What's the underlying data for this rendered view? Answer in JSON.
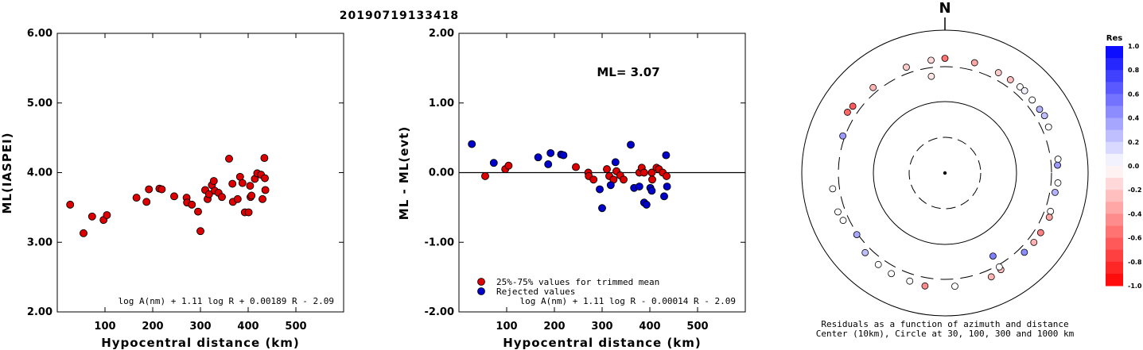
{
  "page_title": "20190719133418",
  "chart_data": [
    {
      "type": "scatter",
      "id": "ml-vs-distance",
      "xlabel": "Hypocentral distance (km)",
      "ylabel": "ML(IASPEI)",
      "xlim": [
        0,
        600
      ],
      "ylim": [
        2.0,
        6.0
      ],
      "xticks": [
        "100",
        "200",
        "300",
        "400",
        "500"
      ],
      "xtick_values": [
        100,
        200,
        300,
        400,
        500
      ],
      "yticks": [
        "2.00",
        "3.00",
        "4.00",
        "5.00",
        "6.00"
      ],
      "ytick_values": [
        2,
        3,
        4,
        5,
        6
      ],
      "formula": "log A(nm) + 1.11 log R + 0.00189 R - 2.09",
      "series": [
        {
          "color": "#dd0000",
          "points": [
            [
              27,
              3.54
            ],
            [
              55,
              3.13
            ],
            [
              73,
              3.37
            ],
            [
              97,
              3.32
            ],
            [
              104,
              3.39
            ],
            [
              166,
              3.64
            ],
            [
              187,
              3.58
            ],
            [
              192,
              3.76
            ],
            [
              214,
              3.77
            ],
            [
              219,
              3.76
            ],
            [
              245,
              3.66
            ],
            [
              271,
              3.64
            ],
            [
              272,
              3.57
            ],
            [
              282,
              3.54
            ],
            [
              295,
              3.44
            ],
            [
              300,
              3.16
            ],
            [
              310,
              3.75
            ],
            [
              315,
              3.62
            ],
            [
              318,
              3.69
            ],
            [
              324,
              3.82
            ],
            [
              328,
              3.88
            ],
            [
              330,
              3.74
            ],
            [
              338,
              3.71
            ],
            [
              345,
              3.65
            ],
            [
              360,
              4.2
            ],
            [
              367,
              3.84
            ],
            [
              368,
              3.58
            ],
            [
              378,
              3.62
            ],
            [
              383,
              3.94
            ],
            [
              388,
              3.85
            ],
            [
              393,
              3.43
            ],
            [
              401,
              3.43
            ],
            [
              404,
              3.81
            ],
            [
              405,
              3.65
            ],
            [
              407,
              3.67
            ],
            [
              414,
              3.91
            ],
            [
              419,
              3.99
            ],
            [
              427,
              3.97
            ],
            [
              430,
              3.62
            ],
            [
              434,
              4.21
            ],
            [
              435,
              3.92
            ],
            [
              436,
              3.75
            ]
          ]
        }
      ]
    },
    {
      "type": "scatter",
      "id": "residual-vs-distance",
      "xlabel": "Hypocentral distance (km)",
      "ylabel": "ML - ML(evt)",
      "xlim": [
        0,
        600
      ],
      "ylim": [
        -2.0,
        2.0
      ],
      "xticks": [
        "100",
        "200",
        "300",
        "400",
        "500"
      ],
      "xtick_values": [
        100,
        200,
        300,
        400,
        500
      ],
      "yticks": [
        "-2.00",
        "-1.00",
        "0.00",
        "1.00",
        "2.00"
      ],
      "ytick_values": [
        -2,
        -1,
        0,
        1,
        2
      ],
      "annotation": "ML= 3.07",
      "formula": "log A(nm) + 1.11 log R - 0.00014 R - 2.09",
      "legend_position": "bottom-left",
      "series": [
        {
          "name": "25%-75% values for trimmed mean",
          "color": "#dd0000",
          "points": [
            [
              55,
              -0.05
            ],
            [
              97,
              0.05
            ],
            [
              104,
              0.1
            ],
            [
              245,
              0.08
            ],
            [
              271,
              0.0
            ],
            [
              272,
              -0.05
            ],
            [
              282,
              -0.1
            ],
            [
              310,
              0.05
            ],
            [
              315,
              -0.05
            ],
            [
              324,
              -0.1
            ],
            [
              330,
              0.02
            ],
            [
              338,
              -0.04
            ],
            [
              345,
              -0.1
            ],
            [
              378,
              0.0
            ],
            [
              383,
              0.07
            ],
            [
              388,
              0.0
            ],
            [
              404,
              0.0
            ],
            [
              405,
              -0.1
            ],
            [
              414,
              0.07
            ],
            [
              419,
              0.05
            ],
            [
              427,
              0.0
            ],
            [
              435,
              -0.05
            ]
          ]
        },
        {
          "name": "Rejected values",
          "color": "#0000cc",
          "points": [
            [
              27,
              0.41
            ],
            [
              73,
              0.14
            ],
            [
              166,
              0.22
            ],
            [
              187,
              0.12
            ],
            [
              192,
              0.28
            ],
            [
              214,
              0.26
            ],
            [
              219,
              0.25
            ],
            [
              295,
              -0.24
            ],
            [
              300,
              -0.51
            ],
            [
              318,
              -0.18
            ],
            [
              328,
              0.15
            ],
            [
              360,
              0.4
            ],
            [
              367,
              -0.22
            ],
            [
              378,
              -0.2
            ],
            [
              388,
              -0.43
            ],
            [
              393,
              -0.46
            ],
            [
              401,
              -0.22
            ],
            [
              404,
              -0.26
            ],
            [
              430,
              -0.34
            ],
            [
              434,
              0.25
            ],
            [
              436,
              -0.2
            ]
          ]
        }
      ]
    },
    {
      "type": "scatter",
      "id": "azimuth-residuals",
      "north_label": "N",
      "caption_line1": "Residuals as a function of azimuth and distance",
      "caption_line2": "Center (10km), Circle at 30, 100, 300 and 1000 km",
      "colorbar_title": "Res",
      "colorbar_ticks": [
        "1.0",
        "0.8",
        "0.6",
        "0.4",
        "0.2",
        "0.0",
        "-0.2",
        "-0.4",
        "-0.6",
        "-0.8",
        "-1.0"
      ],
      "colorbar_tick_values": [
        1.0,
        0.8,
        0.6,
        0.4,
        0.2,
        0.0,
        -0.2,
        -0.4,
        -0.6,
        -0.8,
        -1.0
      ],
      "color_high": "#0000ff",
      "color_low": "#ff0000",
      "stations": [
        {
          "az": 0,
          "dist": 460,
          "res": -0.55
        },
        {
          "az": 15,
          "dist": 450,
          "res": -0.35
        },
        {
          "az": 28,
          "dist": 440,
          "res": -0.2
        },
        {
          "az": 35,
          "dist": 445,
          "res": -0.25
        },
        {
          "az": 41,
          "dist": 450,
          "res": 0.0
        },
        {
          "az": 44,
          "dist": 455,
          "res": 0.05
        },
        {
          "az": 50,
          "dist": 440,
          "res": 0.0
        },
        {
          "az": 56,
          "dist": 445,
          "res": 0.3
        },
        {
          "az": 60,
          "dist": 460,
          "res": 0.25
        },
        {
          "az": 66,
          "dist": 430,
          "res": 0.0
        },
        {
          "az": 83,
          "dist": 440,
          "res": 0.0
        },
        {
          "az": 86,
          "dist": 420,
          "res": 0.4
        },
        {
          "az": 95,
          "dist": 430,
          "res": 0.0
        },
        {
          "az": 100,
          "dist": 400,
          "res": 0.3
        },
        {
          "az": 110,
          "dist": 410,
          "res": 0.0
        },
        {
          "az": 113,
          "dist": 430,
          "res": -0.35
        },
        {
          "az": 122,
          "dist": 420,
          "res": -0.5
        },
        {
          "az": 128,
          "dist": 420,
          "res": -0.3
        },
        {
          "az": 135,
          "dist": 410,
          "res": 0.45
        },
        {
          "az": 150,
          "dist": 400,
          "res": -0.25
        },
        {
          "az": 156,
          "dist": 440,
          "res": -0.3
        },
        {
          "az": 150,
          "dist": 340,
          "res": 0.0
        },
        {
          "az": 150,
          "dist": 240,
          "res": 0.5
        },
        {
          "az": 175,
          "dist": 440,
          "res": 0.0
        },
        {
          "az": 190,
          "dist": 460,
          "res": -0.45
        },
        {
          "az": 198,
          "dist": 440,
          "res": 0.0
        },
        {
          "az": 208,
          "dist": 445,
          "res": 0.0
        },
        {
          "az": 216,
          "dist": 430,
          "res": 0.0
        },
        {
          "az": 225,
          "dist": 420,
          "res": 0.25
        },
        {
          "az": 235,
          "dist": 320,
          "res": 0.35
        },
        {
          "az": 245,
          "dist": 410,
          "res": 0.0
        },
        {
          "az": 250,
          "dist": 440,
          "res": 0.0
        },
        {
          "az": 262,
          "dist": 430,
          "res": 0.0
        },
        {
          "az": 290,
          "dist": 340,
          "res": 0.4
        },
        {
          "az": 302,
          "dist": 460,
          "res": -0.6
        },
        {
          "az": 306,
          "dist": 440,
          "res": -0.65
        },
        {
          "az": 320,
          "dist": 400,
          "res": -0.3
        },
        {
          "az": 340,
          "dist": 420,
          "res": -0.2
        },
        {
          "az": 353,
          "dist": 440,
          "res": -0.15
        },
        {
          "az": 352,
          "dist": 250,
          "res": -0.1
        }
      ]
    }
  ]
}
